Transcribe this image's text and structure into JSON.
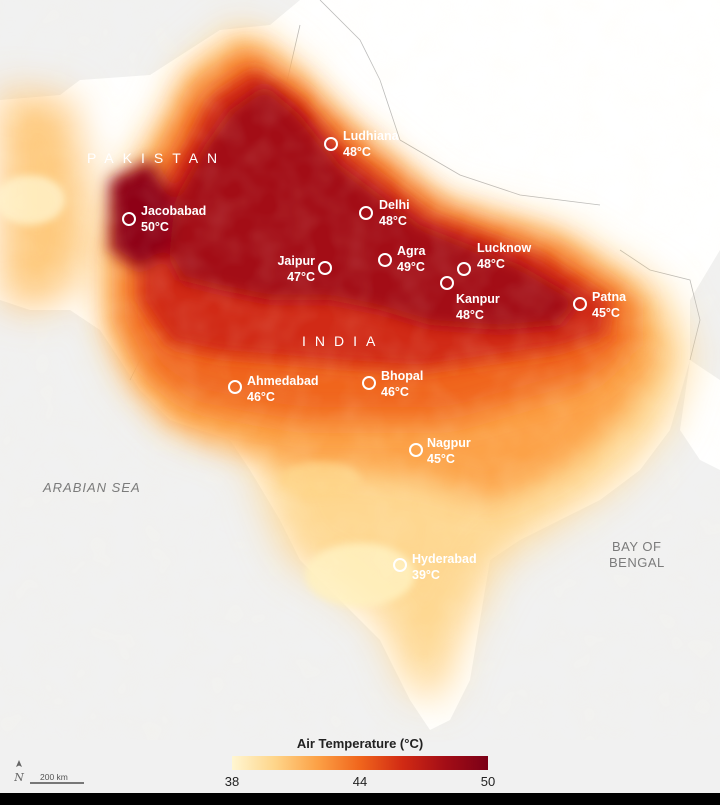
{
  "legend": {
    "title": "Air Temperature (°C)",
    "min": "38",
    "mid": "44",
    "max": "50",
    "scale": [
      38,
      50
    ]
  },
  "scale_bar": {
    "label": "200 km"
  },
  "regions": {
    "pakistan": "PAKISTAN",
    "india": "INDIA"
  },
  "seas": {
    "arabian": "ARABIAN SEA",
    "bay_line1": "BAY OF",
    "bay_line2": "BENGAL"
  },
  "colors": {
    "hot": "#7b0017",
    "warm": "#d12a14",
    "mid": "#f0651c",
    "cool": "#fca146",
    "mild": "#fed58a",
    "land": "#ffffff",
    "background": "#f1f1f1"
  },
  "cities": [
    {
      "name": "Ludhiana",
      "temp": "48°C",
      "temp_value": 48
    },
    {
      "name": "Jacobabad",
      "temp": "50°C",
      "temp_value": 50
    },
    {
      "name": "Delhi",
      "temp": "48°C",
      "temp_value": 48
    },
    {
      "name": "Jaipur",
      "temp": "47°C",
      "temp_value": 47
    },
    {
      "name": "Agra",
      "temp": "49°C",
      "temp_value": 49
    },
    {
      "name": "Lucknow",
      "temp": "48°C",
      "temp_value": 48
    },
    {
      "name": "Kanpur",
      "temp": "48°C",
      "temp_value": 48
    },
    {
      "name": "Patna",
      "temp": "45°C",
      "temp_value": 45
    },
    {
      "name": "Ahmedabad",
      "temp": "46°C",
      "temp_value": 46
    },
    {
      "name": "Bhopal",
      "temp": "46°C",
      "temp_value": 46
    },
    {
      "name": "Nagpur",
      "temp": "45°C",
      "temp_value": 45
    },
    {
      "name": "Hyderabad",
      "temp": "39°C",
      "temp_value": 39
    }
  ]
}
